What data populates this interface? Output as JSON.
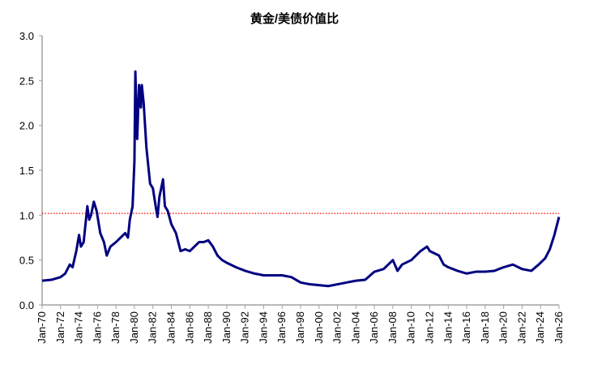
{
  "chart_data": {
    "type": "line",
    "title": "黄金/美债价值比",
    "xlabel": "",
    "ylabel": "",
    "ylim": [
      0,
      3.0
    ],
    "yticks": [
      "0.0",
      "0.5",
      "1.0",
      "1.5",
      "2.0",
      "2.5",
      "3.0"
    ],
    "xticks": [
      "Jan-70",
      "Jan-72",
      "Jan-74",
      "Jan-76",
      "Jan-78",
      "Jan-80",
      "Jan-82",
      "Jan-84",
      "Jan-86",
      "Jan-88",
      "Jan-90",
      "Jan-92",
      "Jan-94",
      "Jan-96",
      "Jan-98",
      "Jan-00",
      "Jan-02",
      "Jan-04",
      "Jan-06",
      "Jan-08",
      "Jan-10",
      "Jan-12",
      "Jan-14",
      "Jan-16",
      "Jan-18",
      "Jan-20",
      "Jan-22",
      "Jan-24",
      "Jan-26"
    ],
    "xlim": [
      1970,
      2026
    ],
    "grid": false,
    "line_color": "#000080",
    "reference_line": {
      "value": 1.02,
      "color": "#ff0000",
      "style": "dotted"
    },
    "series": [
      {
        "x": [
          1970,
          1971,
          1972,
          1972.5,
          1973,
          1973.3,
          1973.7,
          1974,
          1974.2,
          1974.5,
          1974.9,
          1975.1,
          1975.3,
          1975.6,
          1975.9,
          1976.3,
          1976.7,
          1977,
          1977.4,
          1978,
          1978.5,
          1979,
          1979.3,
          1979.5,
          1979.8,
          1980,
          1980.1,
          1980.3,
          1980.5,
          1980.7,
          1980.8,
          1981,
          1981.3,
          1981.7,
          1982,
          1982.3,
          1982.5,
          1982.7,
          1983.1,
          1983.3,
          1983.6,
          1984,
          1984.5,
          1985,
          1985.5,
          1986,
          1986.5,
          1987,
          1987.5,
          1988,
          1988.5,
          1989,
          1989.5,
          1990,
          1991,
          1992,
          1993,
          1994,
          1995,
          1996,
          1997,
          1998,
          1999,
          2000,
          2001,
          2002,
          2003,
          2004,
          2005,
          2006,
          2007,
          2008,
          2008.5,
          2009,
          2010,
          2011,
          2011.7,
          2012,
          2013,
          2013.5,
          2014,
          2015,
          2016,
          2017,
          2018,
          2019,
          2020,
          2021,
          2022,
          2023,
          2023.8,
          2024.5,
          2025,
          2025.5,
          2026
        ],
        "values": [
          0.27,
          0.28,
          0.31,
          0.35,
          0.45,
          0.42,
          0.6,
          0.78,
          0.65,
          0.7,
          1.1,
          0.95,
          1.0,
          1.15,
          1.05,
          0.8,
          0.7,
          0.55,
          0.65,
          0.7,
          0.75,
          0.8,
          0.75,
          0.95,
          1.1,
          1.6,
          2.6,
          1.85,
          2.45,
          2.2,
          2.45,
          2.25,
          1.75,
          1.35,
          1.3,
          1.1,
          0.98,
          1.2,
          1.4,
          1.1,
          1.05,
          0.9,
          0.8,
          0.6,
          0.62,
          0.6,
          0.65,
          0.7,
          0.7,
          0.72,
          0.65,
          0.55,
          0.5,
          0.47,
          0.42,
          0.38,
          0.35,
          0.33,
          0.33,
          0.33,
          0.31,
          0.25,
          0.23,
          0.22,
          0.21,
          0.23,
          0.25,
          0.27,
          0.28,
          0.37,
          0.4,
          0.5,
          0.38,
          0.45,
          0.5,
          0.6,
          0.65,
          0.6,
          0.55,
          0.45,
          0.42,
          0.38,
          0.35,
          0.37,
          0.37,
          0.38,
          0.42,
          0.45,
          0.4,
          0.38,
          0.45,
          0.52,
          0.62,
          0.78,
          0.98
        ]
      }
    ]
  }
}
